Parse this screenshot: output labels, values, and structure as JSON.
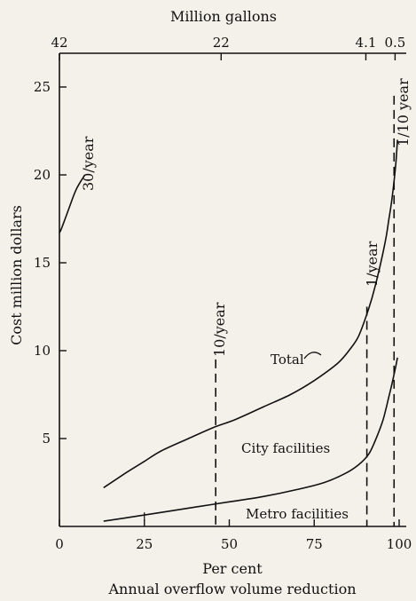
{
  "chart_data": {
    "type": "line",
    "xlabel": "Per cent",
    "xlabel2": "Annual overflow volume reduction",
    "ylabel": "Cost million dollars",
    "top_axis_title": "Million gallons",
    "xlim": [
      0,
      100
    ],
    "ylim": [
      0,
      25
    ],
    "x_ticks": [
      0,
      25,
      50,
      75,
      100
    ],
    "y_ticks": [
      5,
      10,
      15,
      20,
      25
    ],
    "top_ticks": [
      {
        "label": "42",
        "x": 0
      },
      {
        "label": "22",
        "x": 47.6
      },
      {
        "label": "4.1",
        "x": 90.2
      },
      {
        "label": "0.5",
        "x": 98.8
      }
    ],
    "series": [
      {
        "name": "Total",
        "x": [
          13,
          20,
          25,
          30,
          38,
          45,
          52,
          60,
          68,
          75,
          82,
          86,
          88,
          90,
          92,
          94,
          96,
          97,
          98,
          99,
          99.5
        ],
        "y": [
          2.2,
          3.1,
          3.7,
          4.3,
          5.0,
          5.6,
          6.1,
          6.8,
          7.5,
          8.3,
          9.3,
          10.2,
          10.8,
          11.8,
          13.0,
          14.5,
          16.3,
          17.5,
          18.8,
          20.6,
          22.0
        ]
      },
      {
        "name": "City facilities",
        "x": [
          13,
          20,
          30,
          40,
          50,
          60,
          70,
          78,
          84,
          88,
          91,
          93,
          95,
          96,
          97,
          98,
          99,
          99.5
        ],
        "y": [
          0.3,
          0.5,
          0.8,
          1.1,
          1.4,
          1.7,
          2.1,
          2.5,
          3.0,
          3.5,
          4.1,
          4.9,
          5.9,
          6.6,
          7.4,
          8.2,
          9.1,
          9.6
        ]
      }
    ],
    "left_curve": {
      "x": [
        0,
        0.5,
        1.5,
        3,
        5,
        7.5
      ],
      "y": [
        16.7,
        16.9,
        17.4,
        18.2,
        19.2,
        20.0
      ]
    },
    "event_lines": [
      {
        "label": "10/year",
        "x": 46,
        "y_top": 9.5
      },
      {
        "label": "1/year",
        "x": 90.5,
        "y_top": 12.5
      },
      {
        "label": "1/10 year",
        "x": 98.5,
        "y_top": 24.5
      }
    ],
    "annotations": {
      "thirty_per_year": "30/year",
      "total": "Total",
      "city": "City facilities",
      "metro": "Metro facilities"
    }
  }
}
